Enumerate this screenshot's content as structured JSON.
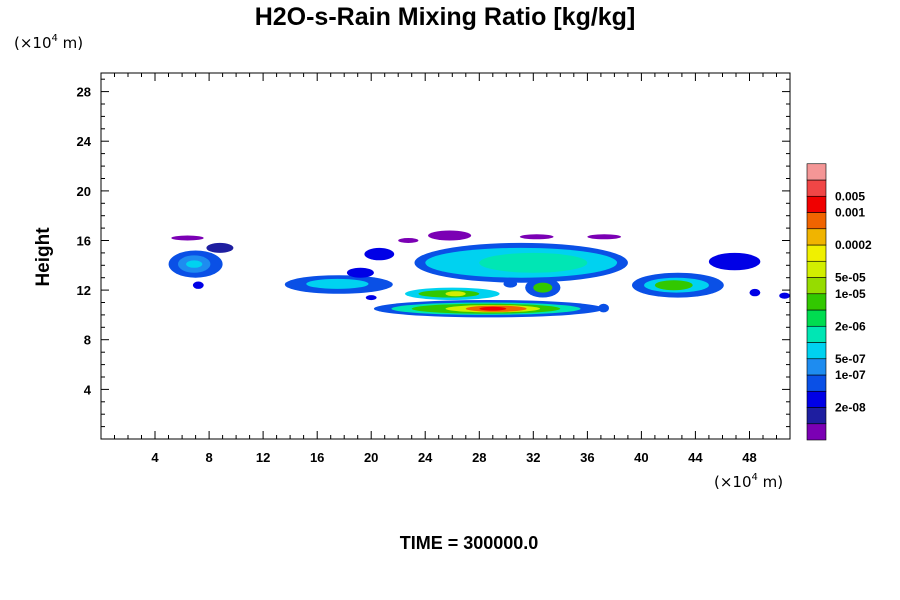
{
  "chart_data": {
    "type": "heatmap",
    "title": "H2O-s-Rain Mixing Ratio [kg/kg]",
    "ylabel": "Height",
    "xlabel": "",
    "unit_prefix": "(×10",
    "unit_exp": "4",
    "unit_suffix": " m)",
    "xlim": [
      0,
      51
    ],
    "ylim": [
      0,
      29.5
    ],
    "x_ticks": [
      {
        "value": 4,
        "label": "4"
      },
      {
        "value": 8,
        "label": "8"
      },
      {
        "value": 12,
        "label": "12"
      },
      {
        "value": 16,
        "label": "16"
      },
      {
        "value": 20,
        "label": "20"
      },
      {
        "value": 24,
        "label": "24"
      },
      {
        "value": 28,
        "label": "28"
      },
      {
        "value": 32,
        "label": "32"
      },
      {
        "value": 36,
        "label": "36"
      },
      {
        "value": 40,
        "label": "40"
      },
      {
        "value": 44,
        "label": "44"
      },
      {
        "value": 48,
        "label": "48"
      }
    ],
    "y_ticks": [
      {
        "value": 4,
        "label": "4"
      },
      {
        "value": 8,
        "label": "8"
      },
      {
        "value": 12,
        "label": "12"
      },
      {
        "value": 16,
        "label": "16"
      },
      {
        "value": 20,
        "label": "20"
      },
      {
        "value": 24,
        "label": "24"
      },
      {
        "value": 28,
        "label": "28"
      }
    ],
    "colorbar": {
      "colors": [
        "#7b00b4",
        "#1e1ea0",
        "#0000e6",
        "#0a50e6",
        "#1e8cf0",
        "#00d2f0",
        "#00e6b4",
        "#00dc50",
        "#32c800",
        "#96dc00",
        "#d2ee00",
        "#f0f000",
        "#f0b400",
        "#f06400",
        "#f00000",
        "#f04646",
        "#f49696"
      ],
      "labels": [
        {
          "index": 1,
          "text": "2e-08"
        },
        {
          "index": 3,
          "text": "1e-07"
        },
        {
          "index": 4,
          "text": "5e-07"
        },
        {
          "index": 6,
          "text": "2e-06"
        },
        {
          "index": 8,
          "text": "1e-05"
        },
        {
          "index": 9,
          "text": "5e-05"
        },
        {
          "index": 11,
          "text": "0.0002"
        },
        {
          "index": 13,
          "text": "0.001"
        },
        {
          "index": 14,
          "text": "0.005"
        }
      ]
    },
    "regions": [
      {
        "x": [
          5.2,
          7.6
        ],
        "y": [
          16.0,
          16.4
        ],
        "level": 0
      },
      {
        "x": [
          7.8,
          9.8
        ],
        "y": [
          15.0,
          15.8
        ],
        "level": 1
      },
      {
        "x": [
          5.0,
          9.0
        ],
        "y": [
          13.0,
          15.2
        ],
        "level": 3
      },
      {
        "x": [
          5.7,
          8.1
        ],
        "y": [
          13.4,
          14.8
        ],
        "level": 4
      },
      {
        "x": [
          6.3,
          7.5
        ],
        "y": [
          13.8,
          14.4
        ],
        "level": 5
      },
      {
        "x": [
          6.8,
          7.6
        ],
        "y": [
          12.1,
          12.7
        ],
        "level": 2
      },
      {
        "x": [
          13.6,
          21.6
        ],
        "y": [
          11.7,
          13.2
        ],
        "level": 3
      },
      {
        "x": [
          15.2,
          19.8
        ],
        "y": [
          12.1,
          12.9
        ],
        "level": 5
      },
      {
        "x": [
          18.2,
          20.2
        ],
        "y": [
          13.0,
          13.8
        ],
        "level": 2
      },
      {
        "x": [
          19.5,
          21.7
        ],
        "y": [
          14.4,
          15.4
        ],
        "level": 2
      },
      {
        "x": [
          19.6,
          20.4
        ],
        "y": [
          11.2,
          11.6
        ],
        "level": 2
      },
      {
        "x": [
          20.2,
          37.2
        ],
        "y": [
          9.8,
          11.2
        ],
        "level": 3
      },
      {
        "x": [
          21.5,
          35.5
        ],
        "y": [
          10.0,
          11.0
        ],
        "level": 6
      },
      {
        "x": [
          23.0,
          34.0
        ],
        "y": [
          10.1,
          10.9
        ],
        "level": 8
      },
      {
        "x": [
          25.5,
          32.5
        ],
        "y": [
          10.2,
          10.8
        ],
        "level": 10
      },
      {
        "x": [
          27.0,
          31.5
        ],
        "y": [
          10.25,
          10.75
        ],
        "level": 13
      },
      {
        "x": [
          28.0,
          30.0
        ],
        "y": [
          10.35,
          10.65
        ],
        "level": 14
      },
      {
        "x": [
          22.5,
          29.5
        ],
        "y": [
          11.2,
          12.2
        ],
        "level": 5
      },
      {
        "x": [
          23.5,
          28.0
        ],
        "y": [
          11.4,
          12.0
        ],
        "level": 8
      },
      {
        "x": [
          25.5,
          27.0
        ],
        "y": [
          11.5,
          11.9
        ],
        "level": 10
      },
      {
        "x": [
          31.4,
          34.0
        ],
        "y": [
          11.4,
          13.0
        ],
        "level": 3
      },
      {
        "x": [
          32.0,
          33.4
        ],
        "y": [
          11.8,
          12.6
        ],
        "level": 8
      },
      {
        "x": [
          29.8,
          30.8
        ],
        "y": [
          12.2,
          12.8
        ],
        "level": 3
      },
      {
        "x": [
          36.8,
          37.6
        ],
        "y": [
          10.2,
          10.9
        ],
        "level": 3
      },
      {
        "x": [
          23.2,
          39.0
        ],
        "y": [
          12.6,
          15.8
        ],
        "level": 3
      },
      {
        "x": [
          24.0,
          38.2
        ],
        "y": [
          13.0,
          15.4
        ],
        "level": 5
      },
      {
        "x": [
          28.0,
          36.0
        ],
        "y": [
          13.4,
          15.0
        ],
        "level": 6
      },
      {
        "x": [
          24.2,
          27.4
        ],
        "y": [
          16.0,
          16.8
        ],
        "level": 0
      },
      {
        "x": [
          31.0,
          33.5
        ],
        "y": [
          16.1,
          16.5
        ],
        "level": 0
      },
      {
        "x": [
          36.0,
          38.5
        ],
        "y": [
          16.1,
          16.5
        ],
        "level": 0
      },
      {
        "x": [
          22.0,
          23.5
        ],
        "y": [
          15.8,
          16.2
        ],
        "level": 0
      },
      {
        "x": [
          39.3,
          46.1
        ],
        "y": [
          11.4,
          13.4
        ],
        "level": 3
      },
      {
        "x": [
          40.2,
          45.0
        ],
        "y": [
          11.8,
          13.0
        ],
        "level": 5
      },
      {
        "x": [
          41.0,
          43.8
        ],
        "y": [
          12.0,
          12.8
        ],
        "level": 8
      },
      {
        "x": [
          45.0,
          48.8
        ],
        "y": [
          13.6,
          15.0
        ],
        "level": 2
      },
      {
        "x": [
          48.0,
          48.8
        ],
        "y": [
          11.5,
          12.1
        ],
        "level": 2
      },
      {
        "x": [
          50.2,
          51.0
        ],
        "y": [
          11.3,
          11.8
        ],
        "level": 2
      }
    ]
  },
  "footer": {
    "time_label": "TIME = 300000.0"
  }
}
